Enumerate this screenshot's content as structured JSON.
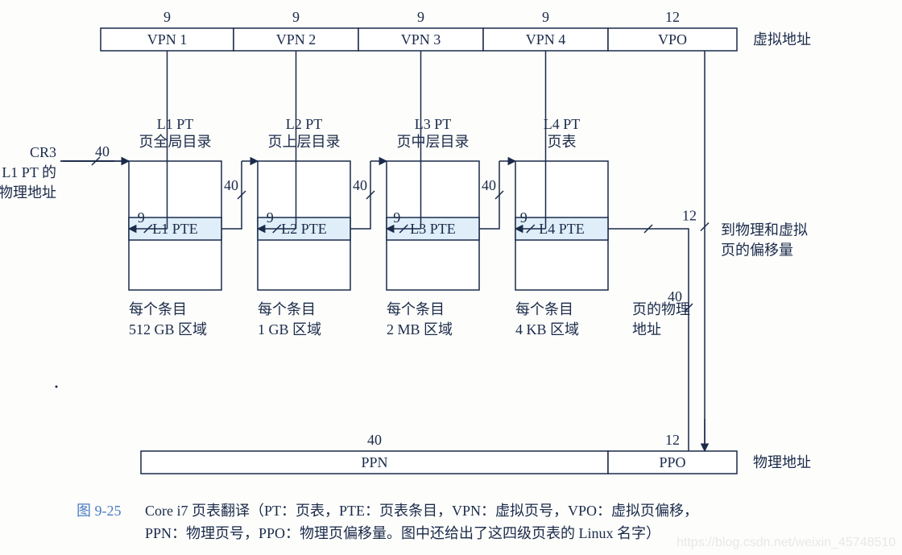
{
  "colors": {
    "stroke": "#1a2a4a",
    "text": "#1a2a4a",
    "pte_fill": "#dfeef8",
    "box_fill": "#ffffff",
    "caption_num": "#4a7bc4",
    "background": "#fdfdfb",
    "watermark": "#e8e8e6"
  },
  "fonts": {
    "base_size": 18,
    "family": "Times New Roman, SimSun, serif"
  },
  "va_row": {
    "bits": [
      "9",
      "9",
      "9",
      "9",
      "12"
    ],
    "cells": [
      "VPN 1",
      "VPN 2",
      "VPN 3",
      "VPN 4",
      "VPO"
    ],
    "right_label": "虚拟地址"
  },
  "cr3": {
    "line1": "CR3",
    "line2": "L1 PT 的",
    "line3": "物理地址"
  },
  "pts": [
    {
      "title1": "L1 PT",
      "title2": "页全局目录",
      "pte": "L1 PTE",
      "sub1": "每个条目",
      "sub2": "512 GB 区域"
    },
    {
      "title1": "L2 PT",
      "title2": "页上层目录",
      "pte": "L2 PTE",
      "sub1": "每个条目",
      "sub2": "1 GB 区域"
    },
    {
      "title1": "L3 PT",
      "title2": "页中层目录",
      "pte": "L3 PTE",
      "sub1": "每个条目",
      "sub2": "2 MB 区域"
    },
    {
      "title1": "L4 PT",
      "title2": "页表",
      "pte": "L4 PTE",
      "sub1": "每个条目",
      "sub2": "4 KB 区域"
    }
  ],
  "bit40": "40",
  "bit9": "9",
  "bit12": "12",
  "phys_page": {
    "line1": "页的物理",
    "line2": "地址"
  },
  "vpo_note": {
    "line1": "到物理和虚拟",
    "line2": "页的偏移量"
  },
  "pa_row": {
    "bits": [
      "40",
      "12"
    ],
    "cells": [
      "PPN",
      "PPO"
    ],
    "right_label": "物理地址"
  },
  "caption": {
    "num": "图 9-25",
    "l1": "Core i7 页表翻译（PT：页表，PTE：页表条目，VPN：虚拟页号，VPO：虚拟页偏移，",
    "l2": "PPN：物理页号，PPO：物理页偏移量。图中还给出了这四级页表的 Linux 名字）"
  },
  "watermark": "https://blog.csdn.net/weixin_45748510"
}
